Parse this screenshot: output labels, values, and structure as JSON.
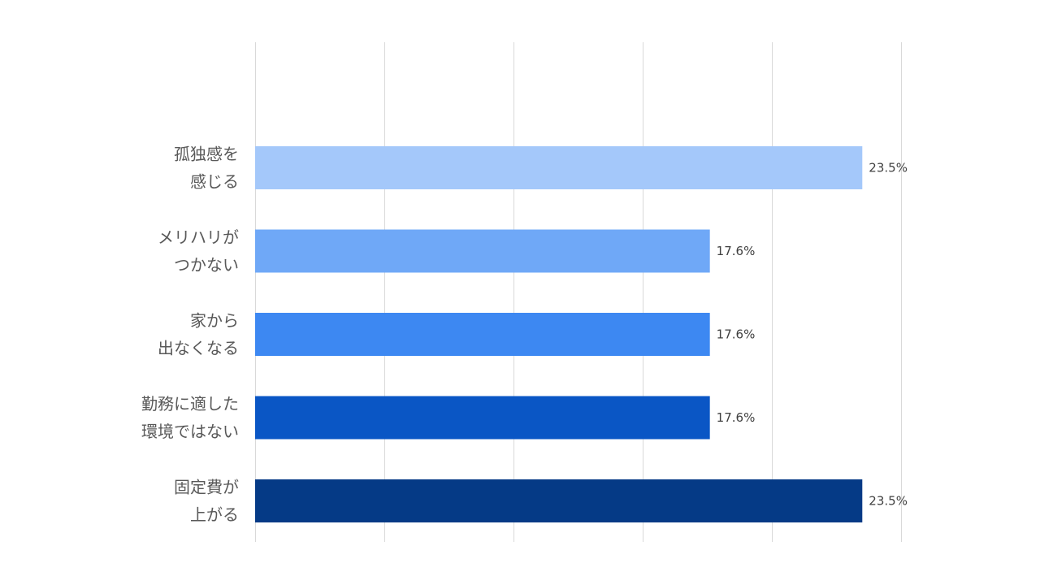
{
  "chart_data": {
    "type": "bar",
    "orientation": "horizontal",
    "categories": [
      [
        "孤独感を",
        "感じる"
      ],
      [
        "メリハリが",
        "つかない"
      ],
      [
        "家から",
        "出なくなる"
      ],
      [
        "勤務に適した",
        "環境ではない"
      ],
      [
        "固定費が",
        "上がる"
      ]
    ],
    "values": [
      23.5,
      17.6,
      17.6,
      17.6,
      23.5
    ],
    "value_labels": [
      "23.5%",
      "17.6%",
      "17.6%",
      "17.6%",
      "23.5%"
    ],
    "colors": [
      "#A4C8FA",
      "#6FA8F7",
      "#3D88F2",
      "#0A56C5",
      "#053A86"
    ],
    "xlim": [
      0,
      25
    ],
    "grid": true,
    "title": "",
    "xlabel": "",
    "ylabel": ""
  }
}
